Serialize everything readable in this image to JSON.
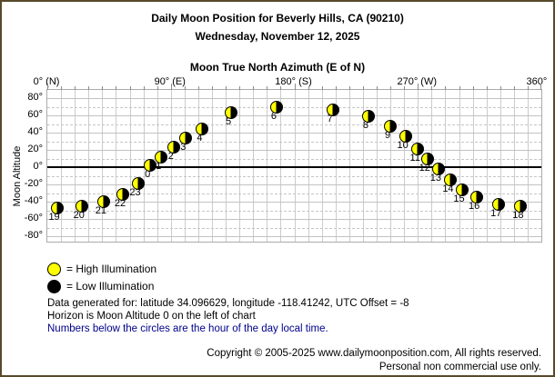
{
  "header": {
    "title": "Daily Moon Position for Beverly Hills, CA (90210)",
    "date": "Wednesday, November 12, 2025"
  },
  "chart": {
    "title": "Moon True North Azimuth (E of N)",
    "y_axis_title": "Moon Altitude",
    "x_ticks": [
      {
        "az": 0,
        "label": "0° (N)"
      },
      {
        "az": 90,
        "label": "90° (E)"
      },
      {
        "az": 180,
        "label": "180° (S)"
      },
      {
        "az": 270,
        "label": "270° (W)"
      },
      {
        "az": 360,
        "label": "360°"
      }
    ],
    "y_ticks": [
      {
        "alt": 80,
        "label": "80°"
      },
      {
        "alt": 60,
        "label": "60°"
      },
      {
        "alt": 40,
        "label": "40°"
      },
      {
        "alt": 20,
        "label": "20°"
      },
      {
        "alt": 0,
        "label": "0°"
      },
      {
        "alt": -20,
        "label": "-20°"
      },
      {
        "alt": -40,
        "label": "-40°"
      },
      {
        "alt": -60,
        "label": "-60°"
      },
      {
        "alt": -80,
        "label": "-80°"
      }
    ]
  },
  "chart_data": {
    "type": "scatter",
    "title": "Moon True North Azimuth (E of N)",
    "xlabel": "Moon True North Azimuth (E of N)",
    "ylabel": "Moon Altitude",
    "xlim": [
      0,
      360
    ],
    "ylim": [
      -90,
      90
    ],
    "x_grid_step_deg": 10,
    "y_grid_step_deg": 10,
    "marker": "half-illuminated moon disc, yellow = lit side (left), black = dark side",
    "illuminated_fraction": 0.45,
    "lit_side": "left",
    "points": [
      {
        "hour": 0,
        "azimuth": 75,
        "altitude": 2
      },
      {
        "hour": 1,
        "azimuth": 83,
        "altitude": 12
      },
      {
        "hour": 2,
        "azimuth": 92,
        "altitude": 23
      },
      {
        "hour": 3,
        "azimuth": 101,
        "altitude": 34
      },
      {
        "hour": 4,
        "azimuth": 113,
        "altitude": 44
      },
      {
        "hour": 5,
        "azimuth": 134,
        "altitude": 63
      },
      {
        "hour": 6,
        "azimuth": 167,
        "altitude": 69
      },
      {
        "hour": 7,
        "azimuth": 208,
        "altitude": 66
      },
      {
        "hour": 8,
        "azimuth": 234,
        "altitude": 59
      },
      {
        "hour": 9,
        "azimuth": 250,
        "altitude": 47
      },
      {
        "hour": 10,
        "azimuth": 261,
        "altitude": 36
      },
      {
        "hour": 11,
        "azimuth": 270,
        "altitude": 21
      },
      {
        "hour": 12,
        "azimuth": 277,
        "altitude": 10
      },
      {
        "hour": 13,
        "azimuth": 285,
        "altitude": -2
      },
      {
        "hour": 14,
        "azimuth": 294,
        "altitude": -15
      },
      {
        "hour": 15,
        "azimuth": 302,
        "altitude": -26
      },
      {
        "hour": 16,
        "azimuth": 313,
        "altitude": -35
      },
      {
        "hour": 17,
        "azimuth": 329,
        "altitude": -43
      },
      {
        "hour": 18,
        "azimuth": 345,
        "altitude": -45
      },
      {
        "hour": 19,
        "azimuth": 7,
        "altitude": -47
      },
      {
        "hour": 20,
        "azimuth": 25,
        "altitude": -45
      },
      {
        "hour": 21,
        "azimuth": 41,
        "altitude": -40
      },
      {
        "hour": 22,
        "azimuth": 55,
        "altitude": -32
      },
      {
        "hour": 23,
        "azimuth": 66,
        "altitude": -19
      }
    ]
  },
  "legend": {
    "high": {
      "label": "= High Illumination"
    },
    "low": {
      "label": "= Low Illumination"
    }
  },
  "footer": {
    "lines": [
      "Data generated for: latitude 34.096629, longitude -118.41242, UTC Offset = -8",
      "Horizon is Moon Altitude 0 on the left of chart",
      "Numbers below the circles are the hour of the day local time."
    ]
  },
  "copyright": {
    "line1": "Copyright © 2005-2025 www.dailymoonposition.com, All rights reserved.",
    "line2": "Personal non commercial use only."
  },
  "colors": {
    "high_illumination": "#ffff00",
    "low_illumination": "#000000",
    "note_text": "#00008b",
    "frame_border": "#57492a"
  }
}
